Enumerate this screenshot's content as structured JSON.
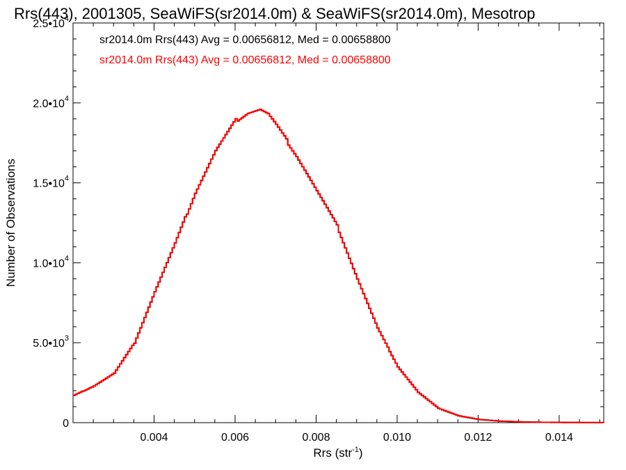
{
  "chart_data": {
    "type": "line",
    "title": "Rrs(443), 2001305, SeaWiFS(sr2014.0m) & SeaWiFS(sr2014.0m), Mesotrop",
    "xlabel_main": "Rrs (str",
    "xlabel_sup": "-1",
    "xlabel_end": ")",
    "ylabel": "Number of Observations",
    "xlim": [
      0.002,
      0.0151
    ],
    "ylim": [
      0,
      25000
    ],
    "x_ticks": [
      {
        "value": 0.004,
        "label": "0.004"
      },
      {
        "value": 0.006,
        "label": "0.006"
      },
      {
        "value": 0.008,
        "label": "0.008"
      },
      {
        "value": 0.01,
        "label": "0.010"
      },
      {
        "value": 0.012,
        "label": "0.012"
      },
      {
        "value": 0.014,
        "label": "0.014"
      }
    ],
    "y_ticks": [
      {
        "value": 0,
        "mant": "0",
        "exp": ""
      },
      {
        "value": 5000,
        "mant": "5.0•10",
        "exp": "3"
      },
      {
        "value": 10000,
        "mant": "1.0•10",
        "exp": "4"
      },
      {
        "value": 15000,
        "mant": "1.5•10",
        "exp": "4"
      },
      {
        "value": 20000,
        "mant": "2.0•10",
        "exp": "4"
      },
      {
        "value": 25000,
        "mant": "2.5•10",
        "exp": "4"
      }
    ],
    "legend": [
      {
        "text": "sr2014.0m Rrs(443) Avg = 0.00656812, Med = 0.00658800",
        "color": "#000000"
      },
      {
        "text": "sr2014.0m Rrs(443) Avg = 0.00656812, Med = 0.00658800",
        "color": "#ff0000"
      }
    ],
    "series": [
      {
        "color": "#000000",
        "x": [
          0.002,
          0.0025,
          0.003,
          0.0035,
          0.004,
          0.0045,
          0.005,
          0.0055,
          0.006,
          0.0063,
          0.0066,
          0.0068,
          0.007,
          0.0075,
          0.008,
          0.0085,
          0.009,
          0.0095,
          0.01,
          0.0105,
          0.011,
          0.0115,
          0.012,
          0.0125,
          0.013,
          0.0135,
          0.014,
          0.0145,
          0.0151
        ],
        "y": [
          1700,
          2300,
          3100,
          5000,
          8200,
          11200,
          14400,
          17000,
          18900,
          19400,
          19600,
          19300,
          18600,
          16700,
          14500,
          12300,
          9000,
          5900,
          3500,
          1900,
          900,
          430,
          200,
          100,
          50,
          25,
          15,
          8,
          5
        ]
      },
      {
        "color": "#ff0000",
        "x": [
          0.002,
          0.0025,
          0.003,
          0.0035,
          0.004,
          0.0045,
          0.005,
          0.0055,
          0.006,
          0.0063,
          0.0066,
          0.0068,
          0.007,
          0.0075,
          0.008,
          0.0085,
          0.009,
          0.0095,
          0.01,
          0.0105,
          0.011,
          0.0115,
          0.012,
          0.0125,
          0.013,
          0.0135,
          0.014,
          0.0145,
          0.0151
        ],
        "y": [
          1700,
          2300,
          3100,
          5000,
          8200,
          11200,
          14400,
          17000,
          18900,
          19400,
          19600,
          19300,
          18600,
          16700,
          14500,
          12300,
          9000,
          5900,
          3500,
          1900,
          900,
          430,
          200,
          100,
          50,
          25,
          15,
          8,
          5
        ]
      }
    ]
  }
}
